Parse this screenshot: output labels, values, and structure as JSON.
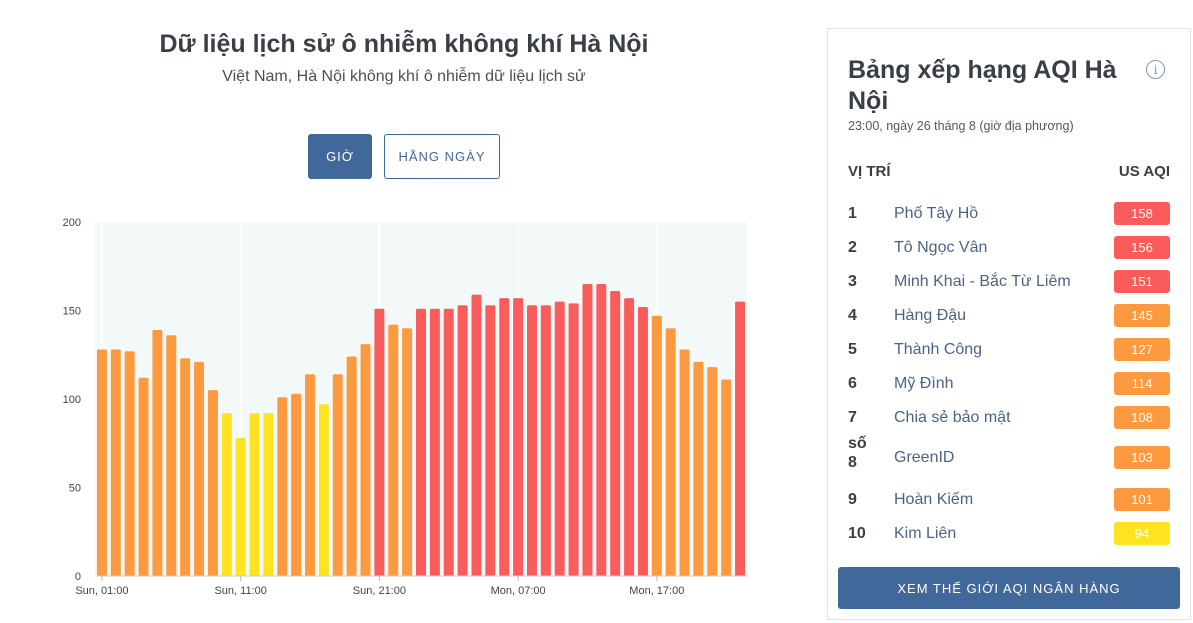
{
  "header": {
    "title": "Dữ liệu lịch sử ô nhiễm không khí Hà Nội",
    "subtitle": "Việt Nam, Hà Nội không khí ô nhiễm dữ liệu lịch sử"
  },
  "toggle": {
    "hourly_label": "GIỜ",
    "daily_label": "HẰNG NGÀY",
    "selected": "hourly"
  },
  "colors": {
    "red": "#fa5c5c",
    "orange": "#fd9a3f",
    "yellow": "#fde320",
    "plot_bg": "#f3f9f9",
    "accent": "#41689a"
  },
  "chart_data": {
    "type": "bar",
    "ylim": [
      0,
      200
    ],
    "yticks": [
      0,
      50,
      100,
      150,
      200
    ],
    "xtick_labels": [
      {
        "index": 0,
        "label": "Sun, 01:00"
      },
      {
        "index": 10,
        "label": "Sun, 11:00"
      },
      {
        "index": 20,
        "label": "Sun, 21:00"
      },
      {
        "index": 30,
        "label": "Mon, 07:00"
      },
      {
        "index": 40,
        "label": "Mon, 17:00"
      }
    ],
    "values": [
      128,
      128,
      127,
      112,
      139,
      136,
      123,
      121,
      105,
      92,
      78,
      92,
      92,
      101,
      103,
      114,
      97,
      114,
      124,
      131,
      151,
      142,
      140,
      151,
      151,
      151,
      153,
      159,
      153,
      157,
      157,
      153,
      153,
      155,
      154,
      165,
      165,
      161,
      157,
      152,
      147,
      140,
      128,
      121,
      118,
      111,
      155
    ]
  },
  "ranking": {
    "title": "Bảng xếp hạng AQI Hà Nội",
    "info_icon": "info-icon",
    "time": "23:00, ngày 26 tháng 8 (giờ địa phương)",
    "col_location": "VỊ TRÍ",
    "col_aqi": "US AQI",
    "rows": [
      {
        "rank": "1",
        "name": "Phố Tây Hồ",
        "aqi": "158",
        "color": "#fa5c5c"
      },
      {
        "rank": "2",
        "name": "Tô Ngọc Vân",
        "aqi": "156",
        "color": "#fa5c5c"
      },
      {
        "rank": "3",
        "name": "Minh Khai - Bắc Từ Liêm",
        "aqi": "151",
        "color": "#fa5c5c"
      },
      {
        "rank": "4",
        "name": "Hàng Đậu",
        "aqi": "145",
        "color": "#fd9a3f"
      },
      {
        "rank": "5",
        "name": "Thành Công",
        "aqi": "127",
        "color": "#fd9a3f"
      },
      {
        "rank": "6",
        "name": "Mỹ Đình",
        "aqi": "114",
        "color": "#fd9a3f"
      },
      {
        "rank": "7",
        "name": "Chia sẻ bảo mật",
        "aqi": "108",
        "color": "#fd9a3f"
      },
      {
        "rank": "số 8",
        "name": "GreenID",
        "aqi": "103",
        "color": "#fd9a3f"
      },
      {
        "rank": "9",
        "name": "Hoàn Kiếm",
        "aqi": "101",
        "color": "#fd9a3f"
      },
      {
        "rank": "10",
        "name": "Kim Liên",
        "aqi": "94",
        "color": "#fde320"
      }
    ],
    "world_button": "XEM THẾ GIỚI AQI NGÂN HÀNG"
  }
}
